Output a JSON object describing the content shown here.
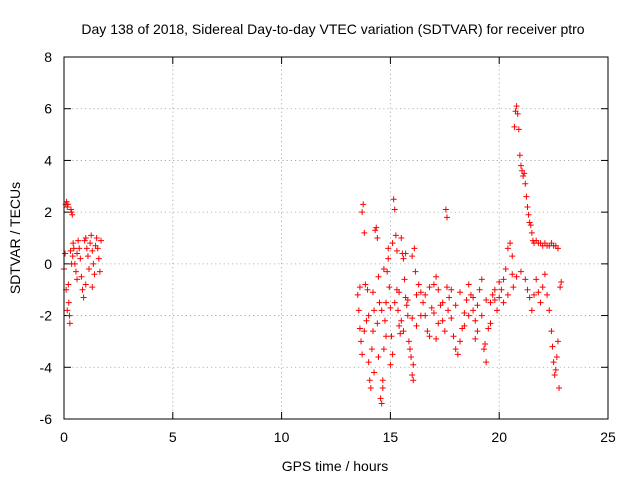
{
  "chart_data": {
    "type": "scatter",
    "title": "Day 138 of 2018, Sidereal Day-to-day VTEC variation (SDTVAR) for receiver ptro",
    "xlabel": "GPS time / hours",
    "ylabel": "SDTVAR / TECUs",
    "xlim": [
      0,
      25
    ],
    "ylim": [
      -6,
      8
    ],
    "x_ticks": [
      0,
      5,
      10,
      15,
      20,
      25
    ],
    "y_ticks": [
      -6,
      -4,
      -2,
      0,
      2,
      4,
      6,
      8
    ],
    "x_tick_labels": [
      "0",
      "5",
      "10",
      "15",
      "20",
      "25"
    ],
    "y_tick_labels": [
      "-6",
      "-4",
      "-2",
      "0",
      "2",
      "4",
      "6",
      "8"
    ],
    "grid": true,
    "marker": "plus",
    "color": "#ff0000",
    "series": [
      {
        "name": "SDTVAR",
        "points": [
          [
            0.0,
            -0.2
          ],
          [
            0.05,
            0.4
          ],
          [
            0.08,
            2.3
          ],
          [
            0.12,
            2.4
          ],
          [
            0.15,
            2.2
          ],
          [
            0.18,
            2.3
          ],
          [
            0.2,
            -0.8
          ],
          [
            0.22,
            -1.5
          ],
          [
            0.25,
            -2.0
          ],
          [
            0.27,
            -2.3
          ],
          [
            0.3,
            0.5
          ],
          [
            0.32,
            2.1
          ],
          [
            0.35,
            2.0
          ],
          [
            0.38,
            1.9
          ],
          [
            0.4,
            0.3
          ],
          [
            0.42,
            0.8
          ],
          [
            0.45,
            0.6
          ],
          [
            0.5,
            0.0
          ],
          [
            0.55,
            -0.3
          ],
          [
            0.6,
            0.4
          ],
          [
            0.65,
            0.9
          ],
          [
            0.7,
            0.6
          ],
          [
            0.75,
            0.2
          ],
          [
            0.8,
            -0.5
          ],
          [
            0.85,
            -1.0
          ],
          [
            0.9,
            -1.3
          ],
          [
            0.95,
            0.9
          ],
          [
            1.0,
            1.0
          ],
          [
            1.05,
            0.6
          ],
          [
            1.1,
            0.3
          ],
          [
            1.15,
            -0.2
          ],
          [
            1.2,
            0.8
          ],
          [
            1.25,
            1.1
          ],
          [
            1.3,
            0.5
          ],
          [
            1.35,
            0.0
          ],
          [
            1.4,
            -0.4
          ],
          [
            1.45,
            0.7
          ],
          [
            1.5,
            1.0
          ],
          [
            1.55,
            0.6
          ],
          [
            1.6,
            0.2
          ],
          [
            1.65,
            -0.3
          ],
          [
            1.7,
            0.9
          ],
          [
            0.1,
            -1.0
          ],
          [
            0.15,
            -1.8
          ],
          [
            0.35,
            0.0
          ],
          [
            0.6,
            -0.6
          ],
          [
            1.0,
            -0.8
          ],
          [
            1.3,
            -0.9
          ],
          [
            13.5,
            -1.2
          ],
          [
            13.55,
            -1.8
          ],
          [
            13.6,
            -2.5
          ],
          [
            13.65,
            -3.0
          ],
          [
            13.7,
            -3.5
          ],
          [
            13.75,
            2.3
          ],
          [
            13.8,
            1.2
          ],
          [
            13.85,
            -0.8
          ],
          [
            13.9,
            -2.2
          ],
          [
            13.95,
            -1.0
          ],
          [
            14.0,
            -3.8
          ],
          [
            14.05,
            -4.5
          ],
          [
            14.1,
            -4.8
          ],
          [
            14.15,
            -3.3
          ],
          [
            14.2,
            -2.6
          ],
          [
            14.25,
            -1.8
          ],
          [
            14.3,
            1.3
          ],
          [
            14.35,
            1.4
          ],
          [
            14.4,
            1.0
          ],
          [
            14.45,
            -0.5
          ],
          [
            14.5,
            -1.5
          ],
          [
            14.55,
            -5.2
          ],
          [
            14.6,
            -5.4
          ],
          [
            14.65,
            -4.5
          ],
          [
            14.7,
            -3.3
          ],
          [
            14.75,
            -2.2
          ],
          [
            14.8,
            -1.5
          ],
          [
            14.85,
            -0.3
          ],
          [
            14.9,
            0.2
          ],
          [
            14.95,
            -0.9
          ],
          [
            15.0,
            -1.7
          ],
          [
            15.05,
            -2.8
          ],
          [
            15.1,
            -3.5
          ],
          [
            15.15,
            2.5
          ],
          [
            15.2,
            2.1
          ],
          [
            15.25,
            1.1
          ],
          [
            15.3,
            -1.0
          ],
          [
            15.35,
            -1.8
          ],
          [
            15.4,
            -2.4
          ],
          [
            15.45,
            -2.7
          ],
          [
            15.5,
            -2.2
          ],
          [
            15.55,
            0.4
          ],
          [
            15.6,
            0.2
          ],
          [
            15.65,
            -0.6
          ],
          [
            15.7,
            -1.3
          ],
          [
            15.75,
            -1.6
          ],
          [
            15.8,
            -2.0
          ],
          [
            15.85,
            -3.0
          ],
          [
            15.9,
            -3.3
          ],
          [
            15.95,
            -3.6
          ],
          [
            16.0,
            -4.3
          ],
          [
            16.05,
            -4.5
          ],
          [
            16.1,
            0.6
          ],
          [
            16.15,
            -0.3
          ],
          [
            16.2,
            -1.2
          ],
          [
            16.3,
            -0.8
          ],
          [
            16.4,
            -1.1
          ],
          [
            16.5,
            -1.5
          ],
          [
            16.6,
            -2.0
          ],
          [
            16.7,
            -2.6
          ],
          [
            16.8,
            -2.8
          ],
          [
            16.9,
            -1.7
          ],
          [
            17.0,
            -0.8
          ],
          [
            17.1,
            -0.5
          ],
          [
            17.2,
            -1.0
          ],
          [
            17.3,
            -1.6
          ],
          [
            17.4,
            -2.2
          ],
          [
            17.5,
            -2.6
          ],
          [
            17.55,
            2.1
          ],
          [
            17.6,
            1.8
          ],
          [
            17.65,
            -1.8
          ],
          [
            17.7,
            -1.3
          ],
          [
            17.8,
            -1.0
          ],
          [
            17.9,
            -2.8
          ],
          [
            18.0,
            -3.3
          ],
          [
            18.1,
            -3.5
          ],
          [
            18.2,
            -3.0
          ],
          [
            18.3,
            -2.5
          ],
          [
            18.4,
            -1.9
          ],
          [
            18.5,
            -1.4
          ],
          [
            18.6,
            -0.8
          ],
          [
            18.7,
            -1.2
          ],
          [
            18.8,
            -1.8
          ],
          [
            18.9,
            -2.2
          ],
          [
            19.0,
            -1.6
          ],
          [
            19.1,
            -1.0
          ],
          [
            19.2,
            -0.6
          ],
          [
            19.3,
            -3.3
          ],
          [
            19.4,
            -3.8
          ],
          [
            19.5,
            -2.5
          ],
          [
            19.6,
            -1.5
          ],
          [
            19.7,
            -1.2
          ],
          [
            19.8,
            -1.4
          ],
          [
            19.9,
            -1.8
          ],
          [
            20.0,
            -1.3
          ],
          [
            20.1,
            -1.0
          ],
          [
            20.2,
            -0.6
          ],
          [
            20.3,
            -0.2
          ],
          [
            20.4,
            0.6
          ],
          [
            20.5,
            0.8
          ],
          [
            20.6,
            -0.4
          ],
          [
            20.65,
            -0.9
          ],
          [
            20.7,
            5.3
          ],
          [
            20.75,
            5.9
          ],
          [
            20.8,
            6.1
          ],
          [
            20.85,
            5.8
          ],
          [
            20.9,
            5.2
          ],
          [
            20.95,
            4.2
          ],
          [
            21.0,
            3.8
          ],
          [
            21.05,
            3.6
          ],
          [
            21.1,
            3.4
          ],
          [
            21.15,
            3.5
          ],
          [
            21.2,
            3.1
          ],
          [
            21.25,
            2.6
          ],
          [
            21.3,
            2.2
          ],
          [
            21.35,
            1.9
          ],
          [
            21.4,
            1.6
          ],
          [
            21.45,
            1.5
          ],
          [
            21.5,
            1.2
          ],
          [
            21.55,
            0.9
          ],
          [
            21.6,
            0.8
          ],
          [
            21.7,
            0.9
          ],
          [
            21.8,
            0.8
          ],
          [
            21.9,
            0.8
          ],
          [
            22.0,
            0.7
          ],
          [
            22.1,
            0.8
          ],
          [
            22.2,
            0.7
          ],
          [
            22.3,
            0.7
          ],
          [
            22.4,
            0.8
          ],
          [
            22.5,
            0.7
          ],
          [
            22.6,
            0.7
          ],
          [
            22.7,
            0.6
          ],
          [
            21.2,
            -0.6
          ],
          [
            21.3,
            -1.0
          ],
          [
            21.4,
            -1.3
          ],
          [
            21.5,
            -1.8
          ],
          [
            21.6,
            -1.2
          ],
          [
            21.7,
            -0.6
          ],
          [
            21.8,
            -1.1
          ],
          [
            21.9,
            -1.5
          ],
          [
            22.0,
            -0.9
          ],
          [
            22.1,
            -0.4
          ],
          [
            22.2,
            -1.2
          ],
          [
            22.3,
            -1.8
          ],
          [
            22.4,
            -2.6
          ],
          [
            22.45,
            -3.2
          ],
          [
            22.5,
            -3.8
          ],
          [
            22.55,
            -4.3
          ],
          [
            22.6,
            -4.1
          ],
          [
            22.65,
            -3.6
          ],
          [
            22.7,
            -3.0
          ],
          [
            22.75,
            -4.8
          ],
          [
            22.8,
            -0.9
          ],
          [
            22.85,
            -0.7
          ],
          [
            13.6,
            -0.9
          ],
          [
            13.8,
            -2.6
          ],
          [
            14.0,
            -2.0
          ],
          [
            14.2,
            -1.1
          ],
          [
            14.4,
            -2.3
          ],
          [
            14.6,
            -1.8
          ],
          [
            14.8,
            -2.8
          ],
          [
            15.0,
            -3.9
          ],
          [
            15.2,
            -1.5
          ],
          [
            15.4,
            -1.1
          ],
          [
            15.6,
            -2.6
          ],
          [
            15.8,
            -1.4
          ],
          [
            16.0,
            -2.1
          ],
          [
            16.2,
            -2.4
          ],
          [
            16.4,
            -2.0
          ],
          [
            16.6,
            -1.2
          ],
          [
            16.8,
            -0.9
          ],
          [
            17.0,
            -1.9
          ],
          [
            17.2,
            -2.3
          ],
          [
            17.4,
            -1.5
          ],
          [
            17.6,
            -0.9
          ],
          [
            17.8,
            -2.1
          ],
          [
            18.0,
            -1.6
          ],
          [
            18.2,
            -1.1
          ],
          [
            18.4,
            -2.4
          ],
          [
            18.6,
            -2.0
          ],
          [
            18.8,
            -1.3
          ],
          [
            19.0,
            -2.6
          ],
          [
            19.2,
            -2.0
          ],
          [
            19.4,
            -1.4
          ],
          [
            19.6,
            -2.3
          ],
          [
            19.8,
            -1.0
          ],
          [
            20.0,
            -0.7
          ],
          [
            20.2,
            -1.5
          ],
          [
            20.4,
            -1.2
          ],
          [
            20.6,
            0.3
          ],
          [
            20.8,
            -0.5
          ],
          [
            21.0,
            -0.3
          ],
          [
            15.1,
            0.8
          ],
          [
            15.3,
            0.5
          ],
          [
            15.5,
            1.0
          ],
          [
            15.7,
            0.4
          ],
          [
            16.0,
            0.3
          ],
          [
            14.9,
            0.6
          ],
          [
            14.7,
            -0.2
          ],
          [
            13.7,
            2.0
          ],
          [
            14.25,
            -4.2
          ],
          [
            14.45,
            -3.6
          ],
          [
            14.65,
            -4.8
          ],
          [
            16.05,
            -3.9
          ],
          [
            17.1,
            -2.9
          ],
          [
            18.9,
            -2.9
          ],
          [
            19.35,
            -3.1
          ]
        ]
      }
    ]
  }
}
